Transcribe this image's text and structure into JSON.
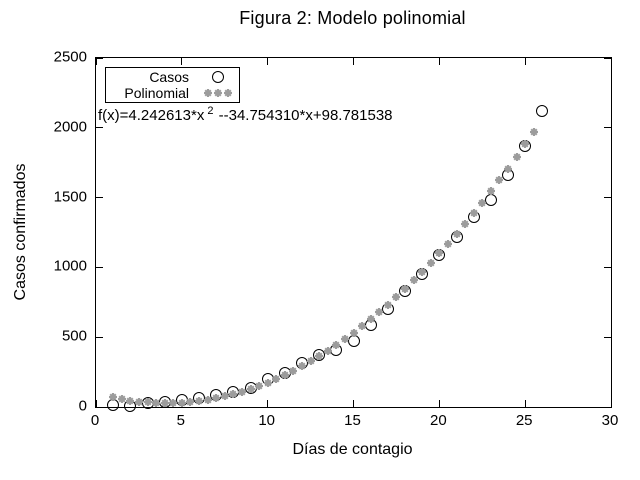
{
  "title": "Figura 2: Modelo polinomial",
  "axes": {
    "xlabel": "Días de contagio",
    "ylabel": "Casos confirmados",
    "xlim": [
      0,
      30
    ],
    "ylim": [
      0,
      2500
    ],
    "xticks": [
      0,
      5,
      10,
      15,
      20,
      25,
      30
    ],
    "yticks": [
      0,
      500,
      1000,
      1500,
      2000,
      2500
    ]
  },
  "legend": {
    "items": [
      {
        "label": "Casos",
        "marker": "open-circle"
      },
      {
        "label": "Polinomial",
        "marker": "gray-asterisk"
      }
    ]
  },
  "annotation": {
    "prefix": "f(x)=4.242613*x",
    "sup": "2",
    "suffix": " --34.754310*x+98.781538"
  },
  "colors": {
    "casos": "#000000",
    "polinomial": "#9c9c9c"
  },
  "chart_data": {
    "type": "scatter",
    "title": "Figura 2: Modelo polinomial",
    "xlabel": "Días de contagio",
    "ylabel": "Casos confirmados",
    "xlim": [
      0,
      30
    ],
    "ylim": [
      0,
      2500
    ],
    "grid": false,
    "legend_position": "top-left-inside",
    "series": [
      {
        "name": "Casos",
        "marker": "open-circle",
        "color": "#000000",
        "x": [
          1,
          2,
          3,
          4,
          5,
          6,
          7,
          8,
          9,
          10,
          11,
          12,
          13,
          14,
          15,
          16,
          17,
          18,
          19,
          20,
          21,
          22,
          23,
          24,
          25,
          26
        ],
        "y": [
          12,
          6,
          26,
          36,
          52,
          67,
          88,
          108,
          135,
          200,
          245,
          312,
          371,
          407,
          470,
          586,
          705,
          831,
          955,
          1086,
          1217,
          1360,
          1485,
          1660,
          1870,
          2120
        ]
      },
      {
        "name": "Polinomial",
        "marker": "asterisk",
        "color": "#9c9c9c",
        "formula": "f(x)=4.242613*x^2-34.754310*x+98.781538",
        "coefficients": {
          "a": 4.242613,
          "b": -34.75431,
          "c": 98.781538
        },
        "x": [
          1,
          1.5,
          2,
          2.5,
          3,
          3.5,
          4,
          4.5,
          5,
          5.5,
          6,
          6.5,
          7,
          7.5,
          8,
          8.5,
          9,
          9.5,
          10,
          10.5,
          11,
          11.5,
          12,
          12.5,
          13,
          13.5,
          14,
          14.5,
          15,
          15.5,
          16,
          16.5,
          17,
          17.5,
          18,
          18.5,
          19,
          19.5,
          20,
          20.5,
          21,
          21.5,
          22,
          22.5,
          23,
          23.5,
          24,
          24.5,
          25,
          25.5
        ],
        "y": [
          68.3,
          56.2,
          46.2,
          38.4,
          32.7,
          29.1,
          27.6,
          28.3,
          31.1,
          36.0,
          43.0,
          52.1,
          63.4,
          76.8,
          92.3,
          109.9,
          129.6,
          151.5,
          175.5,
          201.6,
          229.8,
          260.2,
          292.7,
          327.3,
          364.0,
          402.8,
          443.8,
          486.9,
          532.1,
          579.4,
          628.8,
          680.4,
          734.1,
          789.9,
          847.8,
          907.9,
          970.0,
          1034.3,
          1100.7,
          1169.3,
          1239.9,
          1312.7,
          1387.6,
          1464.6,
          1543.8,
          1625.0,
          1708.4,
          1793.9,
          1881.6,
          1971.3
        ]
      }
    ]
  }
}
